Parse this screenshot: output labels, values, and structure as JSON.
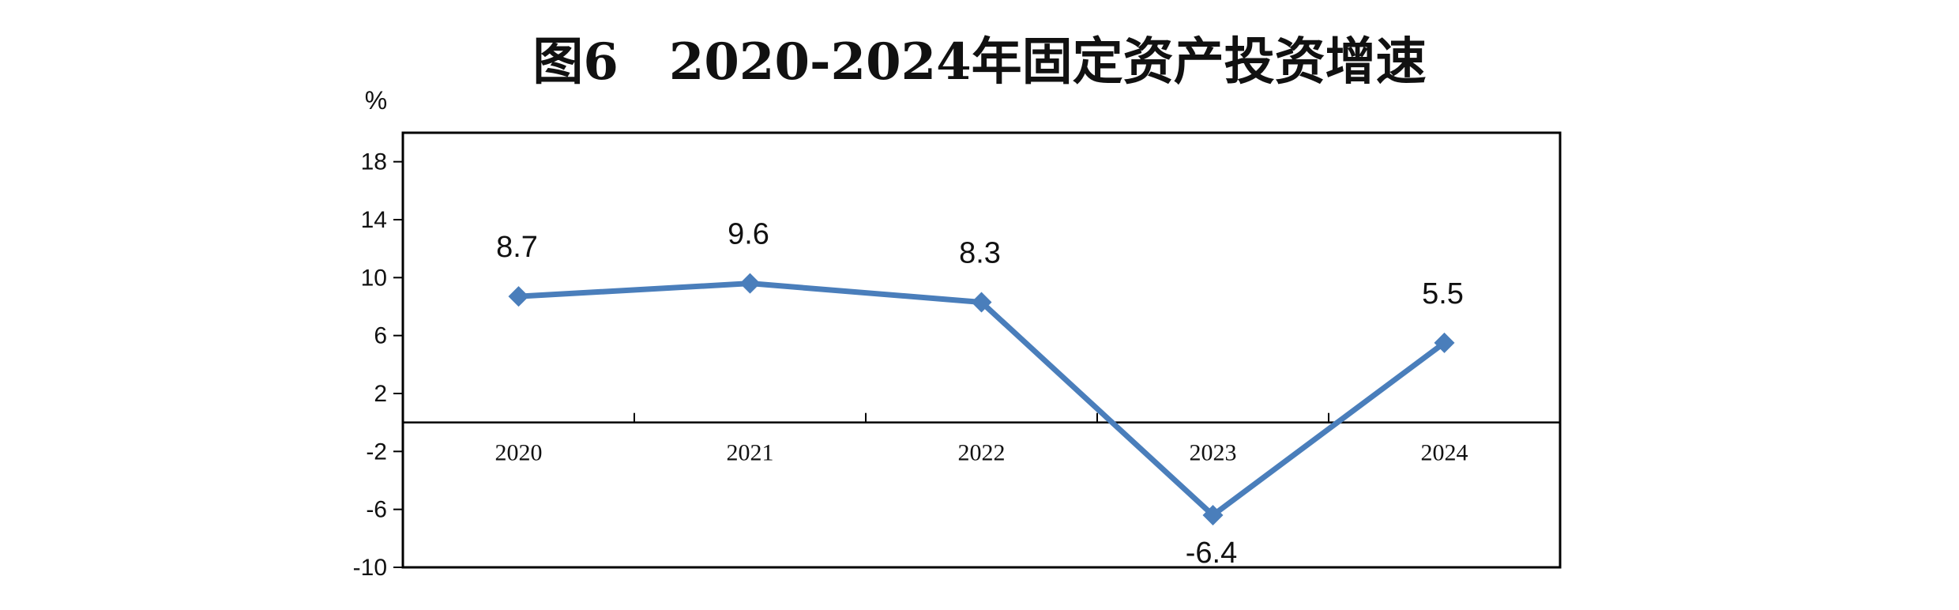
{
  "chart_data": {
    "type": "line",
    "title": "图6　2020-2024年固定资产投资增速",
    "ylabel": "%",
    "xlabel": "",
    "categories": [
      "2020",
      "2021",
      "2022",
      "2023",
      "2024"
    ],
    "series": [
      {
        "values": [
          8.7,
          9.6,
          8.3,
          -6.4,
          5.5
        ],
        "data_labels": [
          "8.7",
          "9.6",
          "8.3",
          "-6.4",
          "5.5"
        ]
      }
    ],
    "yticks": [
      -10,
      -6,
      -2,
      2,
      6,
      10,
      14,
      18
    ],
    "ylim": [
      -10,
      20
    ],
    "grid": false,
    "legend": "none",
    "colors": {
      "line": "#4a7ebb",
      "axis": "#000000"
    }
  }
}
